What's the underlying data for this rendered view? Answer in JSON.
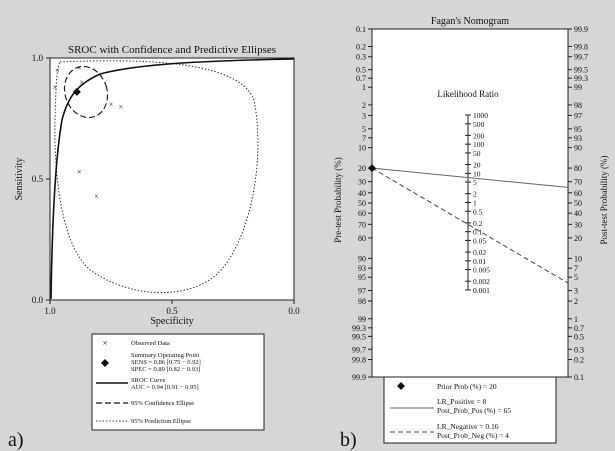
{
  "chart_data": [
    {
      "panel_label": "a)",
      "type": "scatter",
      "title": "SROC with Confidence and Predictive Ellipses",
      "xlabel": "Specificity",
      "ylabel": "Sensitivity",
      "xlim": [
        1.0,
        0.0
      ],
      "ylim": [
        0.0,
        1.0
      ],
      "x_ticks": [
        "1.0",
        "0.5",
        "0.0"
      ],
      "y_ticks": [
        "0.0",
        "0.5",
        "1.0"
      ],
      "observed": [
        {
          "spec": 0.98,
          "sens": 0.88
        },
        {
          "spec": 0.97,
          "sens": 0.95
        },
        {
          "spec": 0.88,
          "sens": 0.96
        },
        {
          "spec": 0.87,
          "sens": 0.9
        },
        {
          "spec": 0.75,
          "sens": 0.81
        },
        {
          "spec": 0.71,
          "sens": 0.8
        },
        {
          "spec": 0.88,
          "sens": 0.53
        },
        {
          "spec": 0.81,
          "sens": 0.43
        }
      ],
      "summary_point": {
        "spec": 0.89,
        "sens": 0.86
      },
      "sroc_auc": 0.94,
      "legend": {
        "observed": "Observed Data",
        "summary": "Summary Operating Point",
        "sens": "SENS = 0.86 [0.75 − 0.92]",
        "spec": "SPEC = 0.89 [0.82 − 0.93]",
        "sroc": "SROC Curve",
        "auc": "AUC = 0.94 [0.91 − 0.95]",
        "confidence": "95% Confidence Ellipse",
        "prediction": "95% Prediction Ellipse"
      }
    },
    {
      "panel_label": "b)",
      "type": "line",
      "title": "Fagan's Nomogram",
      "left_axis_label": "Pre-test Probability (%)",
      "right_axis_label": "Post-test Probability (%)",
      "middle_axis_label": "Likelihood Ratio",
      "left_ticks": [
        "0.1",
        "0.2",
        "0.3",
        "0.5",
        "0.7",
        "1",
        "2",
        "3",
        "5",
        "7",
        "10",
        "20",
        "30",
        "40",
        "50",
        "60",
        "70",
        "80",
        "90",
        "93",
        "95",
        "97",
        "98",
        "99",
        "99.3",
        "99.5",
        "99.7",
        "99.8",
        "99.9"
      ],
      "right_ticks": [
        "99.9",
        "99.8",
        "99.7",
        "99.5",
        "99.3",
        "99",
        "98",
        "97",
        "95",
        "93",
        "90",
        "80",
        "70",
        "60",
        "50",
        "40",
        "30",
        "20",
        "10",
        "7",
        "5",
        "3",
        "2",
        "1",
        "0.7",
        "0.5",
        "0.3",
        "0.2",
        "0.1"
      ],
      "lr_ticks": [
        "1000",
        "500",
        "200",
        "100",
        "50",
        "20",
        "10",
        "5",
        "2",
        "1",
        "0.5",
        "0.2",
        "0.1",
        "0.05",
        "0.02",
        "0.01",
        "0.005",
        "0.002",
        "0.001"
      ],
      "prior_prob": 20,
      "lr_positive": 8,
      "post_prob_pos": 65,
      "lr_negative": 0.16,
      "post_prob_neg": 4,
      "legend": {
        "prior": "Prior Prob (%)  =  20",
        "lrpos": "LR_Positive =  8",
        "postpos": "Post_Prob_Pos (%) =  65",
        "lrneg": "LR_Negative = 0.16",
        "postneg": "Post_Prob_Neg (%) =  4"
      }
    }
  ]
}
